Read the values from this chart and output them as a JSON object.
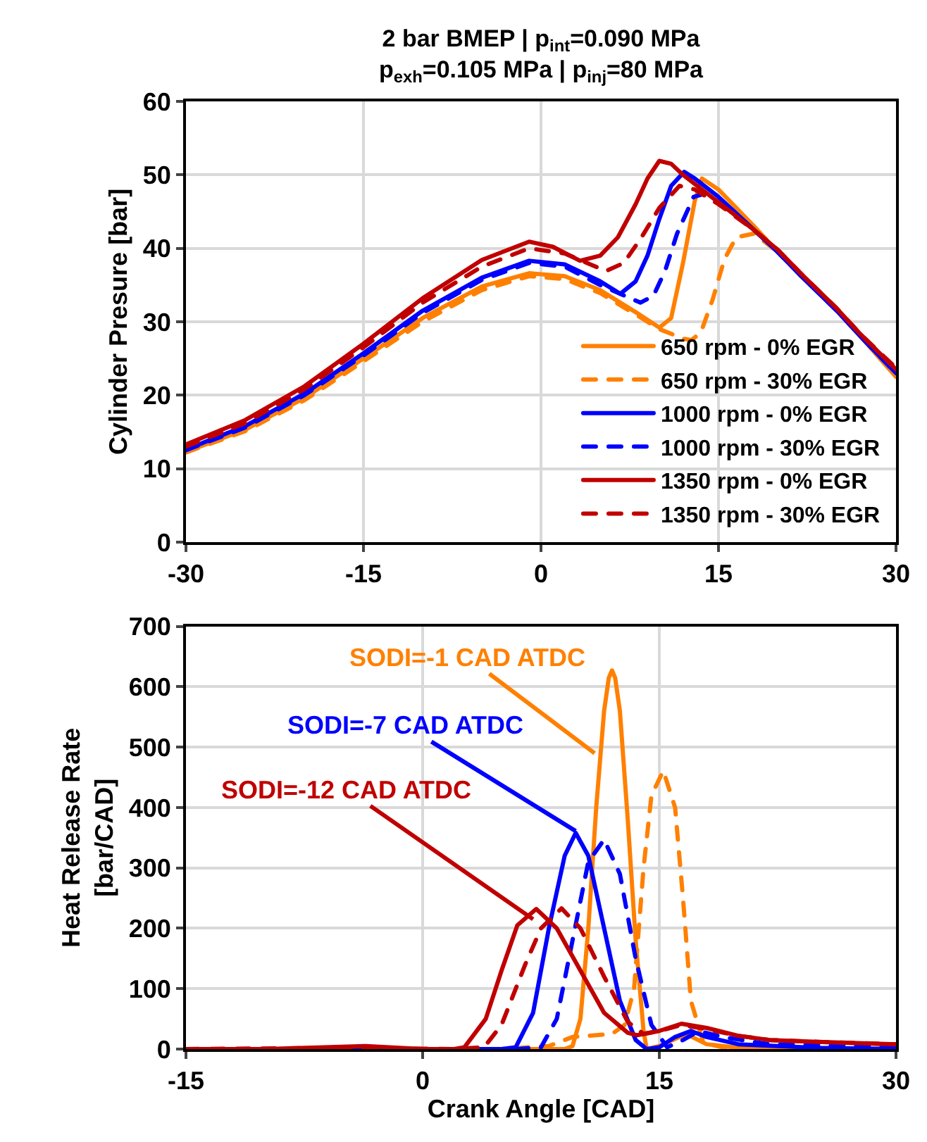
{
  "chart_data": [
    {
      "type": "line",
      "title": "2 bar BMEP | p$_{int}$=0.090 MPa\np$_{exh}$=0.105 MPa | p$_{inj}$=80 MPa",
      "ylabel": "Cylinder Presure [bar]",
      "xlim": [
        -30,
        30
      ],
      "xticks": [
        -30,
        -15,
        0,
        15,
        30
      ],
      "ylim": [
        0,
        60
      ],
      "yticks": [
        0,
        10,
        20,
        30,
        40,
        50,
        60
      ],
      "grid": true,
      "legend": "bottom right",
      "series": [
        {
          "name": "650 rpm - 0% EGR",
          "color": "#ff8000",
          "line_style": "solid",
          "x": [
            -30,
            -25,
            -20,
            -15,
            -10,
            -5,
            -1,
            2,
            5,
            8,
            10,
            11,
            12,
            13,
            13.6,
            15,
            18,
            20,
            22,
            25,
            27,
            30
          ],
          "values": [
            12.3,
            15.3,
            19.6,
            25,
            30.5,
            34.8,
            36.6,
            36.2,
            34.3,
            31.3,
            29.2,
            30.5,
            38,
            46.5,
            49.5,
            48,
            43,
            39.5,
            36.2,
            31.5,
            28,
            22.5
          ]
        },
        {
          "name": "650 rpm - 30% EGR",
          "color": "#ff8000",
          "line_style": "dashed",
          "x": [
            -30,
            -25,
            -20,
            -15,
            -10,
            -5,
            -1,
            2,
            5,
            8,
            10,
            12,
            12.7,
            13.5,
            14.5,
            15.5,
            16.5,
            18,
            20,
            22,
            25,
            27,
            30
          ],
          "values": [
            12.2,
            15.1,
            19.3,
            24.6,
            30,
            34.3,
            36.2,
            35.8,
            33.9,
            31,
            29,
            27.7,
            27.5,
            28.5,
            33,
            38.5,
            41.5,
            42,
            39.5,
            36.2,
            31.5,
            28,
            22.8
          ]
        },
        {
          "name": "1000 rpm - 0% EGR",
          "color": "#0000ff",
          "line_style": "solid",
          "x": [
            -30,
            -25,
            -20,
            -15,
            -10,
            -5,
            -1,
            2,
            5,
            6.7,
            8,
            9,
            10,
            11,
            12.1,
            13,
            15,
            18,
            20,
            22,
            25,
            27,
            30
          ],
          "values": [
            12.6,
            15.8,
            20.2,
            25.7,
            31.5,
            36,
            38.3,
            37.8,
            35.5,
            33.8,
            35.5,
            39,
            44,
            48.5,
            50.4,
            49.5,
            47,
            42.5,
            39.5,
            36.2,
            31.5,
            28,
            23
          ]
        },
        {
          "name": "1000 rpm - 30% EGR",
          "color": "#0000ff",
          "line_style": "dashed",
          "x": [
            -30,
            -25,
            -20,
            -15,
            -10,
            -5,
            -1,
            2,
            5,
            8.4,
            9.5,
            10.5,
            11.5,
            12.9,
            14,
            16,
            18,
            20,
            22,
            25,
            27,
            30
          ],
          "values": [
            12.5,
            15.6,
            20,
            25.4,
            31.2,
            35.7,
            38,
            37.5,
            35,
            32.6,
            33.5,
            37,
            42,
            47,
            47.5,
            45,
            42.5,
            39.5,
            36.2,
            31.5,
            28,
            23
          ]
        },
        {
          "name": "1350 rpm - 0% EGR",
          "color": "#c00000",
          "line_style": "solid",
          "x": [
            -30,
            -25,
            -20,
            -15,
            -10,
            -5,
            -1,
            1,
            3.3,
            5,
            6.5,
            8,
            9,
            10,
            11,
            12,
            14,
            16,
            18,
            20,
            22,
            25,
            27,
            30
          ],
          "values": [
            13.3,
            16.6,
            21.2,
            27,
            33.2,
            38.4,
            40.9,
            40.2,
            38.3,
            39,
            41.5,
            46,
            49.5,
            51.9,
            51.5,
            50,
            47.5,
            45,
            42.5,
            39.8,
            36.5,
            31.8,
            28.3,
            23.5
          ]
        },
        {
          "name": "1350 rpm - 30% EGR",
          "color": "#c00000",
          "line_style": "dashed",
          "x": [
            -30,
            -25,
            -20,
            -15,
            -10,
            -5,
            -1,
            2,
            5.5,
            7,
            8.5,
            10,
            11.7,
            13,
            15,
            18,
            20,
            22,
            25,
            27,
            30
          ],
          "values": [
            13,
            16.2,
            20.8,
            26.5,
            32.6,
            37.5,
            40,
            39.3,
            36.9,
            38,
            41.5,
            45.5,
            48.5,
            48,
            46,
            42.5,
            39.8,
            36.5,
            31.8,
            28.3,
            23.7
          ]
        }
      ]
    },
    {
      "type": "line",
      "xlabel": "Crank Angle [CAD]",
      "ylabel": "Heat Release Rate\n[bar/CAD]",
      "xlim": [
        -15,
        30
      ],
      "xticks": [
        -15,
        0,
        15,
        30
      ],
      "ylim": [
        0,
        700
      ],
      "yticks": [
        0,
        100,
        200,
        300,
        400,
        500,
        600,
        700
      ],
      "grid": true,
      "annotations": [
        {
          "text": "SODI=-1 CAD ATDC",
          "x": 10.9,
          "y": 490
        },
        {
          "text": "SODI=-7 CAD ATDC",
          "x": 9.7,
          "y": 361
        },
        {
          "text": "SODI=-12 CAD ATDC",
          "x": 7.0,
          "y": 215
        }
      ],
      "series": [
        {
          "color": "#ff8000",
          "line_style": "solid",
          "x": [
            -15,
            5,
            9,
            9.5,
            10,
            10.5,
            11,
            11.5,
            11.8,
            12,
            12.2,
            12.5,
            13,
            13.5,
            14,
            14.2,
            15,
            16.7,
            18,
            20,
            30
          ],
          "values": [
            0,
            0,
            0,
            5,
            50,
            200,
            400,
            560,
            615,
            627,
            615,
            560,
            380,
            180,
            30,
            0,
            5,
            25,
            8,
            2,
            0
          ]
        },
        {
          "color": "#ff8000",
          "line_style": "dashed",
          "x": [
            -15,
            5,
            8,
            9.5,
            11,
            12,
            12.8,
            13.4,
            14,
            14.5,
            15.25,
            16,
            16.5,
            17,
            17.8,
            19,
            22,
            30
          ],
          "values": [
            0,
            0,
            5,
            20,
            23,
            25,
            40,
            100,
            300,
            420,
            461,
            400,
            250,
            80,
            10,
            3,
            0,
            0
          ]
        },
        {
          "color": "#0000ff",
          "line_style": "solid",
          "x": [
            -15,
            0,
            5,
            5.9,
            7,
            8,
            9,
            9.7,
            10.5,
            11.5,
            12.5,
            13.5,
            14.2,
            15,
            16,
            17,
            18,
            20,
            25,
            30
          ],
          "values": [
            0,
            0,
            0,
            3,
            60,
            200,
            320,
            358,
            320,
            200,
            80,
            15,
            0,
            3,
            20,
            30,
            20,
            8,
            2,
            0
          ]
        },
        {
          "color": "#0000ff",
          "line_style": "dashed",
          "x": [
            -15,
            0,
            6,
            7.5,
            8.5,
            9.5,
            10.5,
            11.5,
            12.5,
            13.5,
            14.5,
            15.5,
            16.5,
            17.5,
            19,
            22,
            30
          ],
          "values": [
            0,
            0,
            0,
            3,
            50,
            180,
            310,
            347,
            290,
            150,
            40,
            3,
            15,
            30,
            20,
            8,
            3
          ]
        },
        {
          "color": "#c00000",
          "line_style": "solid",
          "x": [
            -15,
            -10,
            -3.6,
            0,
            2,
            2.65,
            4,
            5,
            6,
            7.2,
            8.5,
            10,
            11.5,
            13,
            13.6,
            15,
            16.4,
            18,
            20,
            22,
            25,
            30
          ],
          "values": [
            0,
            0,
            5,
            0,
            0,
            3,
            50,
            130,
            205,
            232,
            200,
            130,
            60,
            27,
            23,
            30,
            42,
            35,
            22,
            15,
            12,
            8
          ]
        },
        {
          "color": "#c00000",
          "line_style": "dashed",
          "x": [
            -15,
            -5,
            2,
            3.9,
            5,
            6.5,
            7.5,
            8.8,
            10,
            11.5,
            13,
            14,
            15,
            16.4,
            18,
            20,
            22,
            25,
            30
          ],
          "values": [
            0,
            2,
            0,
            3,
            40,
            140,
            200,
            233,
            200,
            120,
            45,
            25,
            30,
            40,
            33,
            22,
            15,
            12,
            8
          ]
        }
      ]
    }
  ]
}
